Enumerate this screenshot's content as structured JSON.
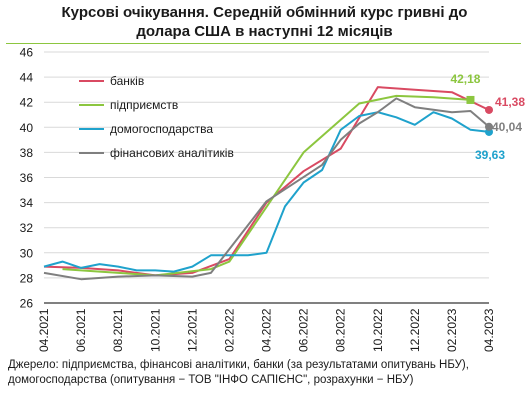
{
  "title_line1": "Курсові  очікування. Середній обмінний курс гривні до",
  "title_line2": "долара США  в наступні  12 місяців",
  "source_line1": "Джерело: підприємства, фінансові аналітики, банки (за результатами опитувань НБУ),",
  "source_line2": "домогосподарства (опитування − ТОВ \"ІНФО САПІЄНС\", розрахунки − НБУ)",
  "chart_data": {
    "type": "line",
    "ylim": [
      26,
      46
    ],
    "yticks": [
      "26",
      "28",
      "30",
      "32",
      "34",
      "36",
      "38",
      "40",
      "42",
      "44",
      "46"
    ],
    "x_labels": [
      "04.2021",
      "06.2021",
      "08.2021",
      "10.2021",
      "12.2021",
      "02.2022",
      "04.2022",
      "06.2022",
      "08.2022",
      "10.2022",
      "12.2022",
      "02.2023",
      "04.2023"
    ],
    "x_months": [
      "04.2021",
      "05.2021",
      "06.2021",
      "07.2021",
      "08.2021",
      "09.2021",
      "10.2021",
      "11.2021",
      "12.2021",
      "01.2022",
      "02.2022",
      "03.2022",
      "04.2022",
      "05.2022",
      "06.2022",
      "07.2022",
      "08.2022",
      "09.2022",
      "10.2022",
      "11.2022",
      "12.2022",
      "01.2023",
      "02.2023",
      "03.2023",
      "04.2023"
    ],
    "grid": true,
    "legend_position": "top-left",
    "series": [
      {
        "name": "банків",
        "color": "#d94a62",
        "points": [
          [
            0,
            28.9
          ],
          [
            2,
            28.8
          ],
          [
            4,
            28.6
          ],
          [
            6,
            28.2
          ],
          [
            8,
            28.4
          ],
          [
            10,
            29.5
          ],
          [
            12,
            34.0
          ],
          [
            14,
            36.5
          ],
          [
            16,
            38.3
          ],
          [
            18,
            43.2
          ],
          [
            20,
            43.0
          ],
          [
            22,
            42.8
          ],
          [
            24,
            41.38
          ]
        ],
        "end_label": "41,38",
        "end_marker": "circle"
      },
      {
        "name": "підприємств",
        "color": "#8cc63f",
        "points": [
          [
            1,
            28.7
          ],
          [
            3,
            28.5
          ],
          [
            6,
            28.2
          ],
          [
            9,
            28.7
          ],
          [
            10,
            29.3
          ],
          [
            14,
            38.0
          ],
          [
            17,
            41.9
          ],
          [
            19,
            42.5
          ],
          [
            21,
            42.4
          ],
          [
            23,
            42.18
          ]
        ],
        "end_label": "42,18",
        "end_marker": "square"
      },
      {
        "name": "домогосподарства",
        "color": "#1fa2cc",
        "points": [
          [
            0,
            28.9
          ],
          [
            1,
            29.3
          ],
          [
            2,
            28.8
          ],
          [
            3,
            29.1
          ],
          [
            4,
            28.9
          ],
          [
            5,
            28.6
          ],
          [
            6,
            28.6
          ],
          [
            7,
            28.5
          ],
          [
            8,
            28.9
          ],
          [
            9,
            29.8
          ],
          [
            10,
            29.8
          ],
          [
            11,
            29.8
          ],
          [
            12,
            30.0
          ],
          [
            13,
            33.7
          ],
          [
            14,
            35.6
          ],
          [
            15,
            36.6
          ],
          [
            16,
            39.8
          ],
          [
            17,
            40.9
          ],
          [
            18,
            41.2
          ],
          [
            19,
            40.8
          ],
          [
            20,
            40.2
          ],
          [
            21,
            41.2
          ],
          [
            22,
            40.7
          ],
          [
            23,
            39.8
          ],
          [
            24,
            39.63
          ]
        ],
        "end_label": "39,63",
        "end_marker": "circle"
      },
      {
        "name": "фінансових  аналітиків",
        "color": "#7f7f7f",
        "points": [
          [
            0,
            28.4
          ],
          [
            2,
            27.9
          ],
          [
            4,
            28.1
          ],
          [
            6,
            28.2
          ],
          [
            8,
            28.1
          ],
          [
            9,
            28.4
          ],
          [
            12,
            34.1
          ],
          [
            15,
            37.0
          ],
          [
            16,
            39.0
          ],
          [
            17,
            40.3
          ],
          [
            18,
            41.2
          ],
          [
            19,
            42.3
          ],
          [
            20,
            41.6
          ],
          [
            22,
            41.2
          ],
          [
            23,
            41.3
          ],
          [
            24,
            40.04
          ]
        ],
        "end_label": "40,04",
        "end_marker": "circle"
      }
    ]
  }
}
